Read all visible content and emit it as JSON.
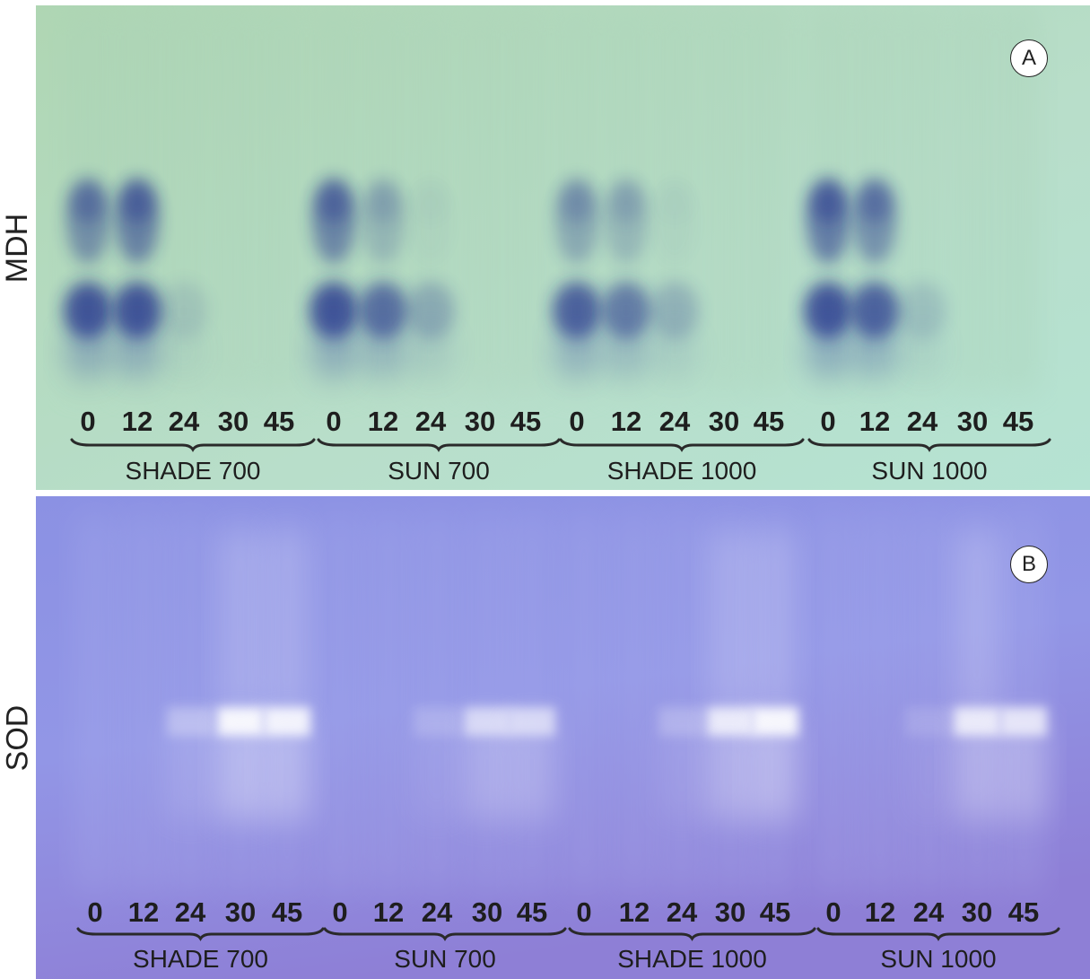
{
  "panels": [
    {
      "letter": "A",
      "side_label": "MDH",
      "background": "#b9dcbf",
      "band_color": "#1a2a8a",
      "groups": [
        {
          "label": "SHADE 700",
          "lanes": [
            "0",
            "12",
            "24",
            "30",
            "45"
          ]
        },
        {
          "label": "SUN 700",
          "lanes": [
            "0",
            "12",
            "24",
            "30",
            "45"
          ]
        },
        {
          "label": "SHADE 1000",
          "lanes": [
            "0",
            "12",
            "24",
            "30",
            "45"
          ]
        },
        {
          "label": "SUN 1000",
          "lanes": [
            "0",
            "12",
            "24",
            "30",
            "45"
          ]
        }
      ]
    },
    {
      "letter": "B",
      "side_label": "SOD",
      "background": "#8a8ee0",
      "band_color": "#ffffff",
      "groups": [
        {
          "label": "SHADE 700",
          "lanes": [
            "0",
            "12",
            "24",
            "30",
            "45"
          ]
        },
        {
          "label": "SUN 700",
          "lanes": [
            "0",
            "12",
            "24",
            "30",
            "45"
          ]
        },
        {
          "label": "SHADE 1000",
          "lanes": [
            "0",
            "12",
            "24",
            "30",
            "45"
          ]
        },
        {
          "label": "SUN 1000",
          "lanes": [
            "0",
            "12",
            "24",
            "30",
            "45"
          ]
        }
      ]
    }
  ]
}
